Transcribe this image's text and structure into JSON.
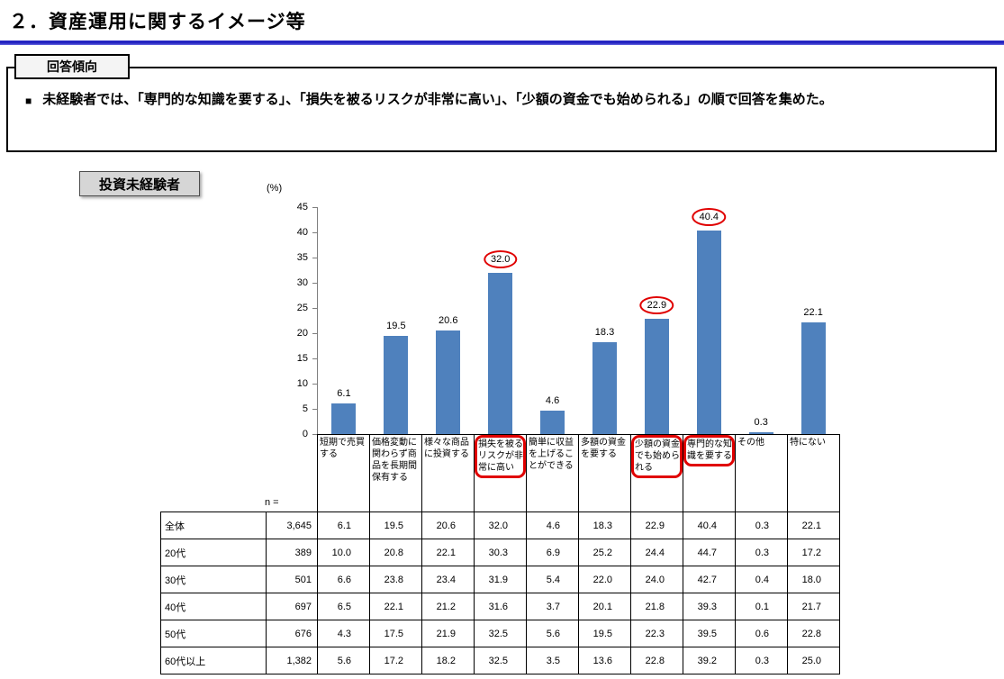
{
  "header": {
    "title": "２．資産運用に関するイメージ等"
  },
  "tendency": {
    "label": "回答傾向",
    "bullet": "■",
    "text": "未経験者では、「専門的な知識を要する」、「損失を被るリスクが非常に高い」、「少額の資金でも始められる」の順で回答を集めた。"
  },
  "chart_data": {
    "type": "bar",
    "title": "投資未経験者",
    "ylabel": "(%)",
    "xlabel": "",
    "categories": [
      "短期で売買する",
      "価格変動に関わらず商品を長期間保有する",
      "様々な商品に投資する",
      "損失を被るリスクが非常に高い",
      "簡単に収益を上げることができる",
      "多額の資金を要する",
      "少額の資金でも始められる",
      "専門的な知識を要する",
      "その他",
      "特にない"
    ],
    "values": [
      6.1,
      19.5,
      20.6,
      32.0,
      4.6,
      18.3,
      22.9,
      40.4,
      0.3,
      22.1
    ],
    "highlighted_indices": [
      3,
      6,
      7
    ],
    "ylim": [
      0,
      45
    ],
    "ytick_step": 5,
    "grid": false,
    "legend": false,
    "bar_color": "#4f81bd",
    "highlight_color": "#e00000"
  },
  "table": {
    "n_label": "n =",
    "rows": [
      {
        "label": "全体",
        "n": "3,645",
        "values": [
          "6.1",
          "19.5",
          "20.6",
          "32.0",
          "4.6",
          "18.3",
          "22.9",
          "40.4",
          "0.3",
          "22.1"
        ]
      },
      {
        "label": "20代",
        "n": "389",
        "values": [
          "10.0",
          "20.8",
          "22.1",
          "30.3",
          "6.9",
          "25.2",
          "24.4",
          "44.7",
          "0.3",
          "17.2"
        ]
      },
      {
        "label": "30代",
        "n": "501",
        "values": [
          "6.6",
          "23.8",
          "23.4",
          "31.9",
          "5.4",
          "22.0",
          "24.0",
          "42.7",
          "0.4",
          "18.0"
        ]
      },
      {
        "label": "40代",
        "n": "697",
        "values": [
          "6.5",
          "22.1",
          "21.2",
          "31.6",
          "3.7",
          "20.1",
          "21.8",
          "39.3",
          "0.1",
          "21.7"
        ]
      },
      {
        "label": "50代",
        "n": "676",
        "values": [
          "4.3",
          "17.5",
          "21.9",
          "32.5",
          "5.6",
          "19.5",
          "22.3",
          "39.5",
          "0.6",
          "22.8"
        ]
      },
      {
        "label": "60代以上",
        "n": "1,382",
        "values": [
          "5.6",
          "17.2",
          "18.2",
          "32.5",
          "3.5",
          "13.6",
          "22.8",
          "39.2",
          "0.3",
          "25.0"
        ]
      }
    ]
  }
}
